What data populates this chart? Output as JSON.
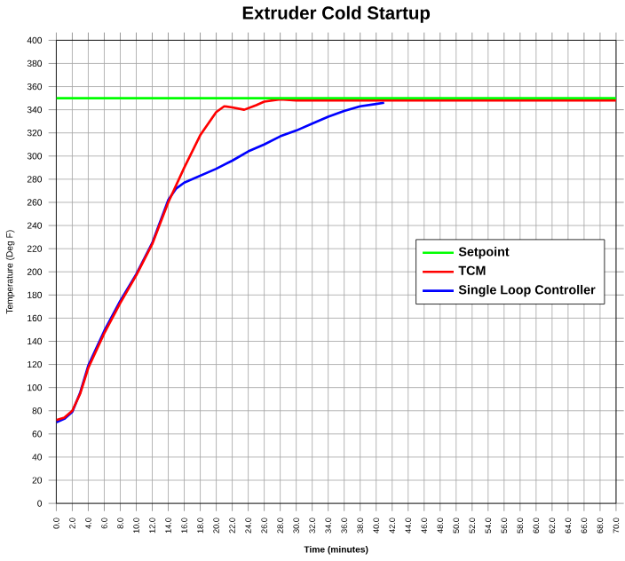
{
  "chart_data": {
    "type": "line",
    "title": "Extruder Cold Startup",
    "xlabel": "Time (minutes)",
    "ylabel": "Temperature (Deg F)",
    "xlim": [
      0,
      70
    ],
    "ylim": [
      0,
      400
    ],
    "xticks": [
      {
        "value": 0,
        "label": "0.0"
      },
      {
        "value": 2,
        "label": "2.0"
      },
      {
        "value": 4,
        "label": "4.0"
      },
      {
        "value": 6,
        "label": "6.0"
      },
      {
        "value": 8,
        "label": "8.0"
      },
      {
        "value": 10,
        "label": "10.0"
      },
      {
        "value": 12,
        "label": "12.0"
      },
      {
        "value": 14,
        "label": "14.0"
      },
      {
        "value": 16,
        "label": "16.0"
      },
      {
        "value": 18,
        "label": "18.0"
      },
      {
        "value": 20,
        "label": "20.0"
      },
      {
        "value": 22,
        "label": "22.0"
      },
      {
        "value": 24,
        "label": "24.0"
      },
      {
        "value": 26,
        "label": "26.0"
      },
      {
        "value": 28,
        "label": "28.0"
      },
      {
        "value": 30,
        "label": "30.0"
      },
      {
        "value": 32,
        "label": "32.0"
      },
      {
        "value": 34,
        "label": "34.0"
      },
      {
        "value": 36,
        "label": "36.0"
      },
      {
        "value": 38,
        "label": "38.0"
      },
      {
        "value": 40,
        "label": "40.0"
      },
      {
        "value": 42,
        "label": "42.0"
      },
      {
        "value": 44,
        "label": "44.0"
      },
      {
        "value": 46,
        "label": "46.0"
      },
      {
        "value": 48,
        "label": "48.0"
      },
      {
        "value": 50,
        "label": "50.0"
      },
      {
        "value": 52,
        "label": "52.0"
      },
      {
        "value": 54,
        "label": "54.0"
      },
      {
        "value": 56,
        "label": "56.0"
      },
      {
        "value": 58,
        "label": "58.0"
      },
      {
        "value": 60,
        "label": "60.0"
      },
      {
        "value": 62,
        "label": "62.0"
      },
      {
        "value": 64,
        "label": "64.0"
      },
      {
        "value": 66,
        "label": "66.0"
      },
      {
        "value": 68,
        "label": "68.0"
      },
      {
        "value": 70,
        "label": "70.0"
      }
    ],
    "yticks": [
      0,
      20,
      40,
      60,
      80,
      100,
      120,
      140,
      160,
      180,
      200,
      220,
      240,
      260,
      280,
      300,
      320,
      340,
      360,
      380,
      400
    ],
    "grid": true,
    "legend": "right",
    "marker": "none",
    "line_style": "solid",
    "series": [
      {
        "name": "Setpoint",
        "color": "#00ff00",
        "x": [
          0,
          70
        ],
        "values": [
          350,
          350
        ]
      },
      {
        "name": "TCM",
        "color": "#ff0000",
        "x": [
          0,
          1,
          2,
          3,
          4,
          6,
          8,
          10,
          12,
          14,
          16,
          18,
          20,
          21,
          22,
          23.5,
          25,
          26,
          28,
          30,
          40,
          50,
          60,
          70
        ],
        "values": [
          72,
          74,
          80,
          95,
          117,
          147,
          173,
          197,
          224,
          260,
          290,
          318,
          338,
          343,
          342,
          340,
          344,
          347,
          349,
          348,
          348,
          348,
          348,
          348
        ]
      },
      {
        "name": "Single Loop Controller",
        "color": "#0000ff",
        "x": [
          0,
          1,
          2,
          3,
          4,
          6,
          8,
          10,
          12,
          14,
          15,
          16,
          18,
          20,
          22,
          24,
          26,
          28,
          30,
          32,
          34,
          36,
          38,
          40,
          41
        ],
        "values": [
          70,
          73,
          79,
          96,
          119,
          149,
          175,
          198,
          225,
          262,
          272,
          277,
          283,
          289,
          296,
          304,
          310,
          317,
          322,
          328,
          334,
          339,
          343,
          345,
          346
        ]
      }
    ]
  }
}
